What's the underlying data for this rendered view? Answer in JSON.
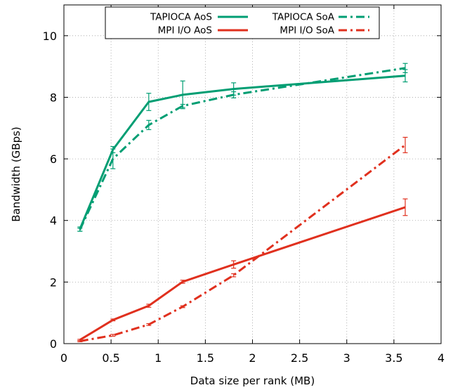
{
  "chart_data": {
    "type": "line",
    "title": "",
    "xlabel": "Data size per rank (MB)",
    "ylabel": "Bandwidth (GBps)",
    "xlim": [
      0,
      4
    ],
    "ylim": [
      0,
      11
    ],
    "xticks": [
      0,
      0.5,
      1,
      1.5,
      2,
      2.5,
      3,
      3.5,
      4
    ],
    "xtick_labels": [
      "0",
      "0.5",
      "1",
      "1.5",
      "2",
      "2.5",
      "3",
      "3.5",
      "4"
    ],
    "yticks": [
      0,
      2,
      4,
      6,
      8,
      10
    ],
    "ytick_labels": [
      "0",
      "2",
      "4",
      "6",
      "8",
      "10"
    ],
    "grid": true,
    "legend_position": "top-center",
    "x": [
      0.17,
      0.52,
      0.9,
      1.26,
      1.8,
      3.62
    ],
    "series": [
      {
        "name": "TAPIOCA AoS",
        "color": "#009E73",
        "dash": "solid",
        "values": [
          3.72,
          6.3,
          7.85,
          8.08,
          8.27,
          8.7
        ],
        "errors": [
          0.07,
          0.1,
          0.28,
          0.45,
          0.2,
          0.2
        ]
      },
      {
        "name": "TAPIOCA SoA",
        "color": "#009E73",
        "dash": "dashdot",
        "values": [
          3.7,
          6.0,
          7.1,
          7.72,
          8.08,
          8.95
        ],
        "errors": [
          0.05,
          0.32,
          0.15,
          0.05,
          0.1,
          0.15
        ]
      },
      {
        "name": "MPI I/O AoS",
        "color": "#E0301E",
        "dash": "solid",
        "values": [
          0.12,
          0.77,
          1.23,
          2.01,
          2.57,
          4.43
        ],
        "errors": [
          0.02,
          0.03,
          0.05,
          0.05,
          0.12,
          0.27
        ]
      },
      {
        "name": "MPI I/O SoA",
        "color": "#E0301E",
        "dash": "dashdot",
        "values": [
          0.08,
          0.27,
          0.62,
          1.2,
          2.22,
          6.45
        ],
        "errors": [
          0.02,
          0.03,
          0.03,
          0.03,
          0.05,
          0.25
        ]
      }
    ]
  }
}
